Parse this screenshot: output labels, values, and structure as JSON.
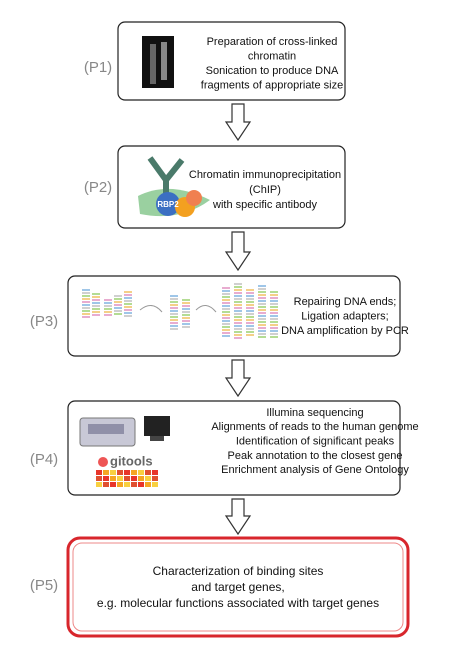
{
  "steps": [
    {
      "label": "(P1)",
      "lines": [
        "Preparation of cross-linked",
        "chromatin",
        "Sonication to produce DNA",
        "fragments of appropriate size"
      ]
    },
    {
      "label": "(P2)",
      "lines": [
        "Chromatin immunoprecipitation",
        "(ChIP)",
        "with specific antibody"
      ],
      "icon_text": "RBP2"
    },
    {
      "label": "(P3)",
      "lines": [
        "Repairing DNA ends;",
        "Ligation adapters;",
        "DNA amplification by PCR"
      ]
    },
    {
      "label": "(P4)",
      "lines": [
        "Illumina sequencing",
        "Alignments of reads to the human genome",
        "Identification of significant peaks",
        "Peak annotation to the closest gene",
        "Enrichment analysis of Gene Ontology"
      ],
      "icon_text": "gitools"
    },
    {
      "label": "(P5)",
      "lines": [
        "Characterization of binding sites",
        "and target genes,",
        "e.g. molecular functions associated with target genes"
      ]
    }
  ]
}
